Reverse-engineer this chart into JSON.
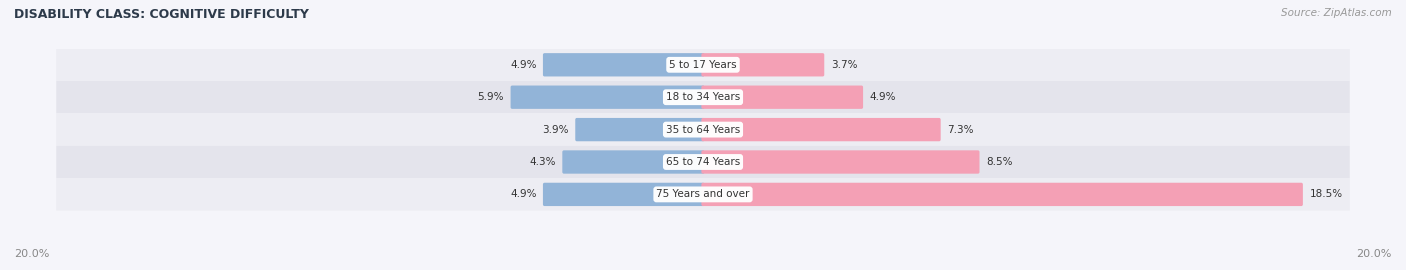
{
  "title": "DISABILITY CLASS: COGNITIVE DIFFICULTY",
  "source": "Source: ZipAtlas.com",
  "categories": [
    "5 to 17 Years",
    "18 to 34 Years",
    "35 to 64 Years",
    "65 to 74 Years",
    "75 Years and over"
  ],
  "male_values": [
    4.9,
    5.9,
    3.9,
    4.3,
    4.9
  ],
  "female_values": [
    3.7,
    4.9,
    7.3,
    8.5,
    18.5
  ],
  "max_val": 20.0,
  "male_color": "#92b4d8",
  "female_color": "#f4a0b5",
  "row_bg_light": "#ededf3",
  "row_bg_dark": "#e4e4ec",
  "fig_bg": "#f5f5fa",
  "label_color": "#333333",
  "title_color": "#2d3a4a",
  "axis_label_color": "#888888",
  "source_color": "#999999",
  "bar_height": 0.62,
  "figsize": [
    14.06,
    2.7
  ],
  "dpi": 100
}
